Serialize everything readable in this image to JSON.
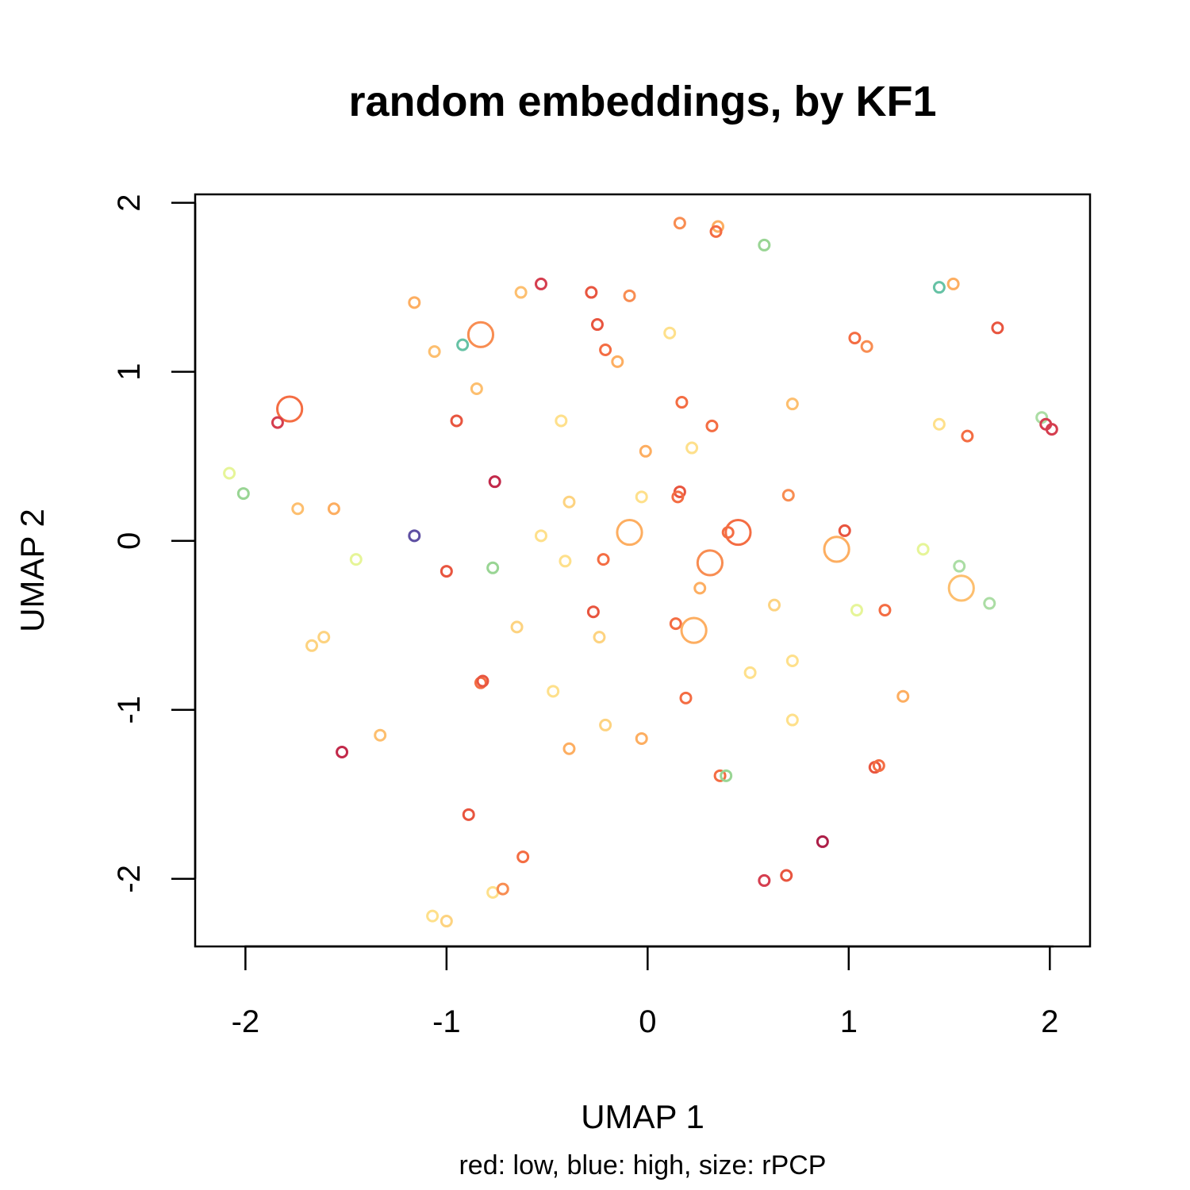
{
  "chart_data": {
    "type": "scatter",
    "title": "random embeddings, by KF1",
    "xlabel": "UMAP 1",
    "ylabel": "UMAP 2",
    "subtitle": "red: low, blue: high, size: rPCP",
    "xlim": [
      -2.25,
      2.2
    ],
    "ylim": [
      -2.4,
      2.05
    ],
    "xticks": [
      "-2",
      "-1",
      "0",
      "1",
      "2"
    ],
    "yticks": [
      "-2",
      "-1",
      "0",
      "1",
      "2"
    ],
    "points": [
      {
        "x": 0.16,
        "y": 1.88,
        "c": "#F88D52",
        "s": 1
      },
      {
        "x": 0.35,
        "y": 1.86,
        "c": "#FDAE61",
        "s": 1
      },
      {
        "x": 0.34,
        "y": 1.83,
        "c": "#F46D43",
        "s": 1
      },
      {
        "x": 0.58,
        "y": 1.75,
        "c": "#99D594",
        "s": 1
      },
      {
        "x": -0.53,
        "y": 1.52,
        "c": "#D53E4F",
        "s": 1
      },
      {
        "x": -0.63,
        "y": 1.47,
        "c": "#FDBF6F",
        "s": 1
      },
      {
        "x": -0.28,
        "y": 1.47,
        "c": "#E8553F",
        "s": 1
      },
      {
        "x": -0.09,
        "y": 1.45,
        "c": "#F88D52",
        "s": 1
      },
      {
        "x": 1.45,
        "y": 1.5,
        "c": "#66C2A5",
        "s": 1
      },
      {
        "x": 1.52,
        "y": 1.52,
        "c": "#FDAE61",
        "s": 1
      },
      {
        "x": -1.16,
        "y": 1.41,
        "c": "#FDAE61",
        "s": 1
      },
      {
        "x": 1.74,
        "y": 1.26,
        "c": "#E8553F",
        "s": 1
      },
      {
        "x": -0.25,
        "y": 1.28,
        "c": "#E8553F",
        "s": 1
      },
      {
        "x": -0.83,
        "y": 1.22,
        "c": "#F88D52",
        "s": 2.4
      },
      {
        "x": 0.11,
        "y": 1.23,
        "c": "#FEE08B",
        "s": 1
      },
      {
        "x": -0.92,
        "y": 1.16,
        "c": "#66C2A5",
        "s": 1
      },
      {
        "x": -1.06,
        "y": 1.12,
        "c": "#FDBF6F",
        "s": 1
      },
      {
        "x": -0.21,
        "y": 1.13,
        "c": "#F46D43",
        "s": 1
      },
      {
        "x": 1.03,
        "y": 1.2,
        "c": "#F46D43",
        "s": 1
      },
      {
        "x": 1.09,
        "y": 1.15,
        "c": "#F88D52",
        "s": 1
      },
      {
        "x": -0.15,
        "y": 1.06,
        "c": "#FDAE61",
        "s": 1
      },
      {
        "x": -0.85,
        "y": 0.9,
        "c": "#FDBF6F",
        "s": 1
      },
      {
        "x": -1.78,
        "y": 0.78,
        "c": "#F46D43",
        "s": 2.4
      },
      {
        "x": -1.84,
        "y": 0.7,
        "c": "#D53E4F",
        "s": 1
      },
      {
        "x": -0.95,
        "y": 0.71,
        "c": "#E8553F",
        "s": 1
      },
      {
        "x": 0.17,
        "y": 0.82,
        "c": "#F46D43",
        "s": 1
      },
      {
        "x": 0.72,
        "y": 0.81,
        "c": "#FDBF6F",
        "s": 1
      },
      {
        "x": -0.43,
        "y": 0.71,
        "c": "#FEE08B",
        "s": 1
      },
      {
        "x": 0.32,
        "y": 0.68,
        "c": "#F46D43",
        "s": 1
      },
      {
        "x": 1.45,
        "y": 0.69,
        "c": "#FEE08B",
        "s": 1
      },
      {
        "x": 1.59,
        "y": 0.62,
        "c": "#F46D43",
        "s": 1
      },
      {
        "x": 1.96,
        "y": 0.73,
        "c": "#ABDDA4",
        "s": 1
      },
      {
        "x": 1.98,
        "y": 0.69,
        "c": "#D53E4F",
        "s": 1
      },
      {
        "x": 2.01,
        "y": 0.66,
        "c": "#D53E4F",
        "s": 1
      },
      {
        "x": -0.01,
        "y": 0.53,
        "c": "#FDAE61",
        "s": 1
      },
      {
        "x": 0.22,
        "y": 0.55,
        "c": "#FEE08B",
        "s": 1
      },
      {
        "x": -2.08,
        "y": 0.4,
        "c": "#E6F598",
        "s": 1
      },
      {
        "x": -2.01,
        "y": 0.28,
        "c": "#99D594",
        "s": 1
      },
      {
        "x": -0.76,
        "y": 0.35,
        "c": "#C2294A",
        "s": 1
      },
      {
        "x": 0.16,
        "y": 0.29,
        "c": "#E8553F",
        "s": 1
      },
      {
        "x": 0.15,
        "y": 0.26,
        "c": "#F46D43",
        "s": 1
      },
      {
        "x": 0.7,
        "y": 0.27,
        "c": "#F88D52",
        "s": 1
      },
      {
        "x": -1.74,
        "y": 0.19,
        "c": "#FDBF6F",
        "s": 1
      },
      {
        "x": -1.56,
        "y": 0.19,
        "c": "#FDAE61",
        "s": 1
      },
      {
        "x": -0.39,
        "y": 0.23,
        "c": "#FDD380",
        "s": 1
      },
      {
        "x": -0.03,
        "y": 0.26,
        "c": "#FEE08B",
        "s": 1
      },
      {
        "x": -1.16,
        "y": 0.03,
        "c": "#5E4FA2",
        "s": 1
      },
      {
        "x": -0.53,
        "y": 0.03,
        "c": "#FEE08B",
        "s": 1
      },
      {
        "x": -0.09,
        "y": 0.05,
        "c": "#FDAE61",
        "s": 2.4
      },
      {
        "x": 0.4,
        "y": 0.05,
        "c": "#F46D43",
        "s": 1
      },
      {
        "x": 0.45,
        "y": 0.05,
        "c": "#F46D43",
        "s": 2.4
      },
      {
        "x": 0.98,
        "y": 0.06,
        "c": "#E8553F",
        "s": 1
      },
      {
        "x": 0.94,
        "y": -0.05,
        "c": "#FDAE61",
        "s": 2.4
      },
      {
        "x": 1.37,
        "y": -0.05,
        "c": "#E6F598",
        "s": 1
      },
      {
        "x": -1.45,
        "y": -0.11,
        "c": "#E6F598",
        "s": 1
      },
      {
        "x": -0.41,
        "y": -0.12,
        "c": "#FEE08B",
        "s": 1
      },
      {
        "x": -0.22,
        "y": -0.11,
        "c": "#F46D43",
        "s": 1
      },
      {
        "x": 0.31,
        "y": -0.13,
        "c": "#F88D52",
        "s": 2.4
      },
      {
        "x": 1.55,
        "y": -0.15,
        "c": "#ABDDA4",
        "s": 1
      },
      {
        "x": -1.0,
        "y": -0.18,
        "c": "#E8553F",
        "s": 1
      },
      {
        "x": -0.77,
        "y": -0.16,
        "c": "#99D594",
        "s": 1
      },
      {
        "x": 0.26,
        "y": -0.28,
        "c": "#FDAE61",
        "s": 1
      },
      {
        "x": 1.56,
        "y": -0.28,
        "c": "#FDBF6F",
        "s": 2.4
      },
      {
        "x": 1.7,
        "y": -0.37,
        "c": "#ABDDA4",
        "s": 1
      },
      {
        "x": 0.63,
        "y": -0.38,
        "c": "#FDD380",
        "s": 1
      },
      {
        "x": 1.04,
        "y": -0.41,
        "c": "#E6F598",
        "s": 1
      },
      {
        "x": 1.18,
        "y": -0.41,
        "c": "#F46D43",
        "s": 1
      },
      {
        "x": -0.27,
        "y": -0.42,
        "c": "#E8553F",
        "s": 1
      },
      {
        "x": 0.14,
        "y": -0.49,
        "c": "#F46D43",
        "s": 1
      },
      {
        "x": -0.65,
        "y": -0.51,
        "c": "#FDD380",
        "s": 1
      },
      {
        "x": 0.23,
        "y": -0.53,
        "c": "#FDAE61",
        "s": 2.4
      },
      {
        "x": -1.61,
        "y": -0.57,
        "c": "#FDD380",
        "s": 1
      },
      {
        "x": -1.67,
        "y": -0.62,
        "c": "#FDD380",
        "s": 1
      },
      {
        "x": -0.24,
        "y": -0.57,
        "c": "#FDD380",
        "s": 1
      },
      {
        "x": 0.72,
        "y": -0.71,
        "c": "#FEE08B",
        "s": 1
      },
      {
        "x": 0.51,
        "y": -0.78,
        "c": "#FEE08B",
        "s": 1
      },
      {
        "x": -0.83,
        "y": -0.84,
        "c": "#F46D43",
        "s": 1
      },
      {
        "x": -0.82,
        "y": -0.83,
        "c": "#E8553F",
        "s": 1
      },
      {
        "x": -0.47,
        "y": -0.89,
        "c": "#FEE08B",
        "s": 1
      },
      {
        "x": 0.19,
        "y": -0.93,
        "c": "#F46D43",
        "s": 1
      },
      {
        "x": 1.27,
        "y": -0.92,
        "c": "#FDAE61",
        "s": 1
      },
      {
        "x": 0.72,
        "y": -1.06,
        "c": "#FEE08B",
        "s": 1
      },
      {
        "x": -0.21,
        "y": -1.09,
        "c": "#FDD380",
        "s": 1
      },
      {
        "x": -1.33,
        "y": -1.15,
        "c": "#FDBF6F",
        "s": 1
      },
      {
        "x": -0.03,
        "y": -1.17,
        "c": "#FDAE61",
        "s": 1
      },
      {
        "x": -0.39,
        "y": -1.23,
        "c": "#FDAE61",
        "s": 1
      },
      {
        "x": -1.52,
        "y": -1.25,
        "c": "#C2294A",
        "s": 1
      },
      {
        "x": 1.13,
        "y": -1.34,
        "c": "#E8553F",
        "s": 1
      },
      {
        "x": 1.15,
        "y": -1.33,
        "c": "#F46D43",
        "s": 1
      },
      {
        "x": 0.36,
        "y": -1.39,
        "c": "#F46D43",
        "s": 1
      },
      {
        "x": 0.39,
        "y": -1.39,
        "c": "#99D594",
        "s": 1
      },
      {
        "x": -0.89,
        "y": -1.62,
        "c": "#E8553F",
        "s": 1
      },
      {
        "x": 0.87,
        "y": -1.78,
        "c": "#AD1F48",
        "s": 1
      },
      {
        "x": -0.62,
        "y": -1.87,
        "c": "#F46D43",
        "s": 1
      },
      {
        "x": 0.58,
        "y": -2.01,
        "c": "#D53E4F",
        "s": 1
      },
      {
        "x": 0.69,
        "y": -1.98,
        "c": "#E8553F",
        "s": 1
      },
      {
        "x": -0.77,
        "y": -2.08,
        "c": "#FEE08B",
        "s": 1
      },
      {
        "x": -0.72,
        "y": -2.06,
        "c": "#F88D52",
        "s": 1
      },
      {
        "x": -1.07,
        "y": -2.22,
        "c": "#FEE08B",
        "s": 1
      },
      {
        "x": -1.0,
        "y": -2.25,
        "c": "#FDD380",
        "s": 1
      }
    ]
  }
}
